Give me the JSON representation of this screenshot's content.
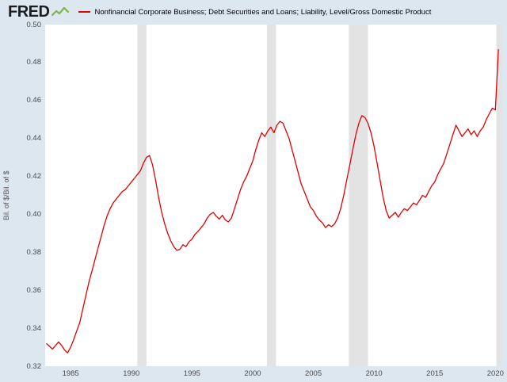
{
  "header": {
    "logo": "FRED",
    "legend_label": "Nonfinancial Corporate Business; Debt Securities and Loans; Liability, Level/Gross Domestic Product"
  },
  "colors": {
    "background": "#dde7f0",
    "line": "#e20000",
    "recession": "#e3e3e3",
    "tick_text": "#4a4a4a",
    "logo_green": "#7ab648"
  },
  "chart_data": {
    "type": "line",
    "title": "Nonfinancial Corporate Business; Debt Securities and Loans; Liability, Level/Gross Domestic Product",
    "ylabel": "Bil. of $/Bil. of $",
    "xlabel": "",
    "ylim": [
      0.32,
      0.5
    ],
    "x_min": 1982.9,
    "x_max": 2020.5,
    "x_start": 1983.0,
    "x_step": 0.25,
    "y_ticks": [
      "0.50",
      "0.48",
      "0.46",
      "0.44",
      "0.42",
      "0.40",
      "0.38",
      "0.36",
      "0.34",
      "0.32"
    ],
    "x_ticks": [
      1985,
      1990,
      1995,
      2000,
      2005,
      2010,
      2015,
      2020
    ],
    "recessions": [
      [
        1990.5,
        1991.25
      ],
      [
        2001.17,
        2001.92
      ],
      [
        2007.92,
        2009.5
      ],
      [
        2020.08,
        2020.5
      ]
    ],
    "grid": false,
    "legend_position": "top",
    "values": [
      0.332,
      0.3305,
      0.329,
      0.3308,
      0.3328,
      0.331,
      0.3285,
      0.327,
      0.33,
      0.334,
      0.3385,
      0.343,
      0.35,
      0.357,
      0.364,
      0.37,
      0.376,
      0.382,
      0.388,
      0.394,
      0.399,
      0.403,
      0.406,
      0.408,
      0.41,
      0.412,
      0.413,
      0.415,
      0.417,
      0.419,
      0.421,
      0.423,
      0.427,
      0.43,
      0.431,
      0.426,
      0.418,
      0.409,
      0.401,
      0.395,
      0.39,
      0.386,
      0.383,
      0.381,
      0.3815,
      0.384,
      0.383,
      0.3855,
      0.387,
      0.3895,
      0.391,
      0.393,
      0.395,
      0.398,
      0.4,
      0.401,
      0.399,
      0.3975,
      0.3995,
      0.397,
      0.396,
      0.398,
      0.403,
      0.408,
      0.413,
      0.417,
      0.42,
      0.424,
      0.428,
      0.434,
      0.439,
      0.443,
      0.441,
      0.444,
      0.446,
      0.443,
      0.447,
      0.449,
      0.448,
      0.444,
      0.44,
      0.434,
      0.428,
      0.422,
      0.416,
      0.412,
      0.408,
      0.404,
      0.402,
      0.399,
      0.397,
      0.3955,
      0.393,
      0.3945,
      0.3935,
      0.395,
      0.398,
      0.403,
      0.41,
      0.418,
      0.426,
      0.434,
      0.442,
      0.448,
      0.452,
      0.451,
      0.448,
      0.443,
      0.436,
      0.427,
      0.418,
      0.409,
      0.402,
      0.398,
      0.3995,
      0.401,
      0.3985,
      0.401,
      0.403,
      0.402,
      0.404,
      0.406,
      0.405,
      0.4075,
      0.41,
      0.409,
      0.412,
      0.415,
      0.417,
      0.421,
      0.424,
      0.427,
      0.432,
      0.437,
      0.442,
      0.447,
      0.444,
      0.441,
      0.443,
      0.445,
      0.442,
      0.444,
      0.441,
      0.444,
      0.446,
      0.45,
      0.453,
      0.456,
      0.455,
      0.487
    ]
  }
}
